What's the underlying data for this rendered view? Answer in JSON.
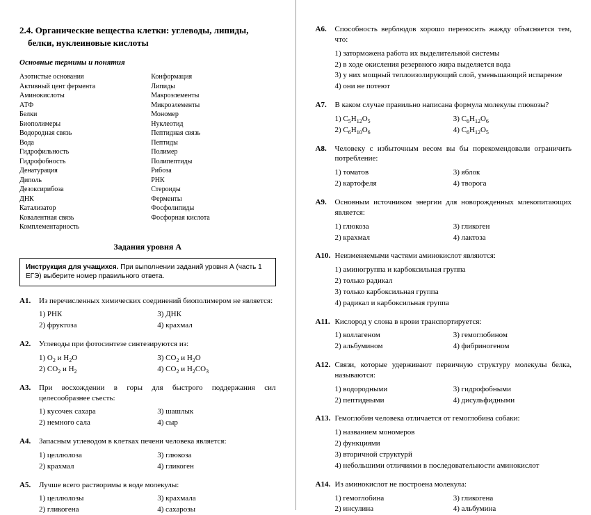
{
  "left": {
    "section_title": "2.4. Органические вещества клетки: углеводы, липиды, белки, нуклеиновые кислоты",
    "terms_heading": "Основные термины и понятия",
    "terms_col1": [
      "Азотистые основания",
      "Активный цент фермента",
      "Аминокислоты",
      "АТФ",
      "Белки",
      "Биополимеры",
      "Водородная связь",
      "Вода",
      "Гидрофильность",
      "Гидрофобность",
      "Денатурация",
      "Диполь",
      "Дезоксирибоза",
      "ДНК",
      "Катализатор",
      "Ковалентная связь",
      "Комплементарность"
    ],
    "terms_col2": [
      "Конформация",
      "Липиды",
      "Макроэлементы",
      "Микроэлементы",
      "Мономер",
      "Нуклеотид",
      "Пептидная связь",
      "Пептиды",
      "Полимер",
      "Полипептиды",
      "Рибоза",
      "РНК",
      "Стероиды",
      "Ферменты",
      "Фосфолипиды",
      "Фосфорная кислота"
    ],
    "tasks_heading": "Задания уровня А",
    "instr_bold": "Инструкция для учащихся.",
    "instr_rest": " При выполнении заданий уровня А (часть 1 ЕГЭ) выберите номер правильного ответа.",
    "q1": {
      "num": "А1.",
      "text": "Из перечисленных химических соединений биополимером не является:",
      "o1": "1) РНК",
      "o2": "3) ДНК",
      "o3": "2) фруктоза",
      "o4": "4) крахмал"
    },
    "q2": {
      "num": "А2.",
      "text": "Углеводы при фотосинтезе синтезируются из:",
      "o1": "1) O₂ и H₂O",
      "o2": "3) CO₂ и H₂O",
      "o3": "2) CO₂ и H₂",
      "o4": "4) CO₂ и H₂CO₃"
    },
    "q3": {
      "num": "А3.",
      "text": "При восхождении в горы для быстрого поддержания сил целесообразнее съесть:",
      "o1": "1) кусочек сахара",
      "o2": "3) шашлык",
      "o3": "2) немного сала",
      "o4": "4) сыр"
    },
    "q4": {
      "num": "А4.",
      "text": "Запасным углеводом в клетках печени человека является:",
      "o1": "1) целлюлоза",
      "o2": "3) глюкоза",
      "o3": "2) крахмал",
      "o4": "4) гликоген"
    },
    "q5": {
      "num": "А5.",
      "text": "Лучше всего растворимы в воде молекулы:",
      "o1": "1) целлюлозы",
      "o2": "3) крахмала",
      "o3": "2) гликогена",
      "o4": "4) сахарозы"
    }
  },
  "right": {
    "q6": {
      "num": "А6.",
      "text": "Способность верблюдов хорошо переносить жажду объясняется тем, что:",
      "o1": "1) заторможена работа их выделительной системы",
      "o2": "2) в ходе окисления резервного жира выделяется вода",
      "o3": "3) у них мощный теплоизолирующий слой, уменьшающий испарение",
      "o4": "4) они не потеют"
    },
    "q7": {
      "num": "А7.",
      "text": "В каком случае правильно написана формула молекулы глюкозы?",
      "o1": "1) C₅H₁₂O₅",
      "o2": "3) C₆H₁₂O₆",
      "o3": "2) C₆H₁₀O₆",
      "o4": "4) C₆H₁₂O₅"
    },
    "q8": {
      "num": "А8.",
      "text": "Человеку с избыточным весом вы бы порекомендовали ограничить потребление:",
      "o1": "1) томатов",
      "o2": "3) яблок",
      "o3": "2) картофеля",
      "o4": "4) творога"
    },
    "q9": {
      "num": "А9.",
      "text": "Основным источником энергии для новорожденных млекопитающих является:",
      "o1": "1) глюкоза",
      "o2": "3) гликоген",
      "o3": "2) крахмал",
      "o4": "4) лактоза"
    },
    "q10": {
      "num": "А10.",
      "text": "Неизменяемыми частями аминокислот являются:",
      "o1": "1) аминогруппа и карбоксильная группа",
      "o2": "2) только радикал",
      "o3": "3) только карбоксильная группа",
      "o4": "4) радикал и карбоксильная группа"
    },
    "q11": {
      "num": "А11.",
      "text": "Кислород  у слона в крови транспортируется:",
      "o1": "1) коллагеном",
      "o2": "3) гемоглобином",
      "o3": "2) альбумином",
      "o4": "4) фибриногеном"
    },
    "q12": {
      "num": "А12.",
      "text": "Связи, которые удерживают первичную структуру молекулы белка, называются:",
      "o1": "1) водородными",
      "o2": "3) гидрофобными",
      "o3": "2) пептидными",
      "o4": "4) дисульфидными"
    },
    "q13": {
      "num": "А13.",
      "text": "Гемоглобин человека отличается от гемоглобина собаки:",
      "o1": "1) названием мономеров",
      "o2": "2) функциями",
      "o3": "3) вторичной структурй",
      "o4": "4) небольшими отличиями в последовательности  аминокислот"
    },
    "q14": {
      "num": "А14.",
      "text": "Из аминокислот не построена молекула:",
      "o1": "1) гемоглобина",
      "o2": "3) гликогена",
      "o3": "2) инсулина",
      "o4": "4) альбумина"
    }
  }
}
